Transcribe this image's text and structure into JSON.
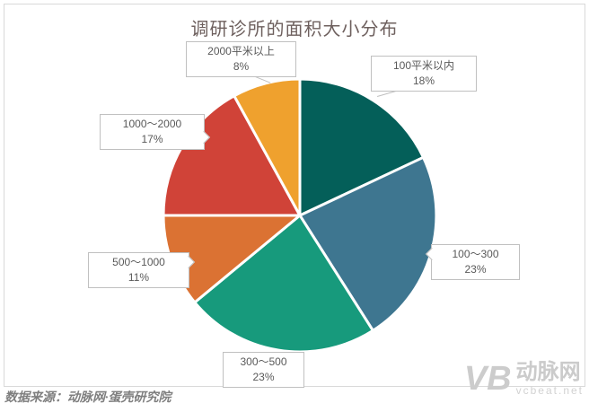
{
  "source": "数据来源：动脉网·蛋壳研究院",
  "watermark": {
    "logo": "VB",
    "brand": "动脉网",
    "site": "vcbeat.net"
  },
  "frame_border_color": "#d9d9d9",
  "chart_data": {
    "type": "pie",
    "title": "调研诊所的面积大小分布",
    "unit": "%",
    "direction": "clockwise",
    "start_angle_deg": 0,
    "legend": "none",
    "label_style": "callout-boxes",
    "slices": [
      {
        "label": "100平米以内",
        "value": 18,
        "pct_label": "18%",
        "color": "#045F59"
      },
      {
        "label": "100～300",
        "value": 23,
        "pct_label": "23%",
        "color": "#3E7690"
      },
      {
        "label": "300～500",
        "value": 23,
        "pct_label": "23%",
        "color": "#179A7C"
      },
      {
        "label": "500～1000",
        "value": 11,
        "pct_label": "11%",
        "color": "#DB7233"
      },
      {
        "label": "1000～2000",
        "value": 17,
        "pct_label": "17%",
        "color": "#D04338"
      },
      {
        "label": "2000平米以上",
        "value": 8,
        "pct_label": "8%",
        "color": "#EFA12E"
      }
    ]
  }
}
